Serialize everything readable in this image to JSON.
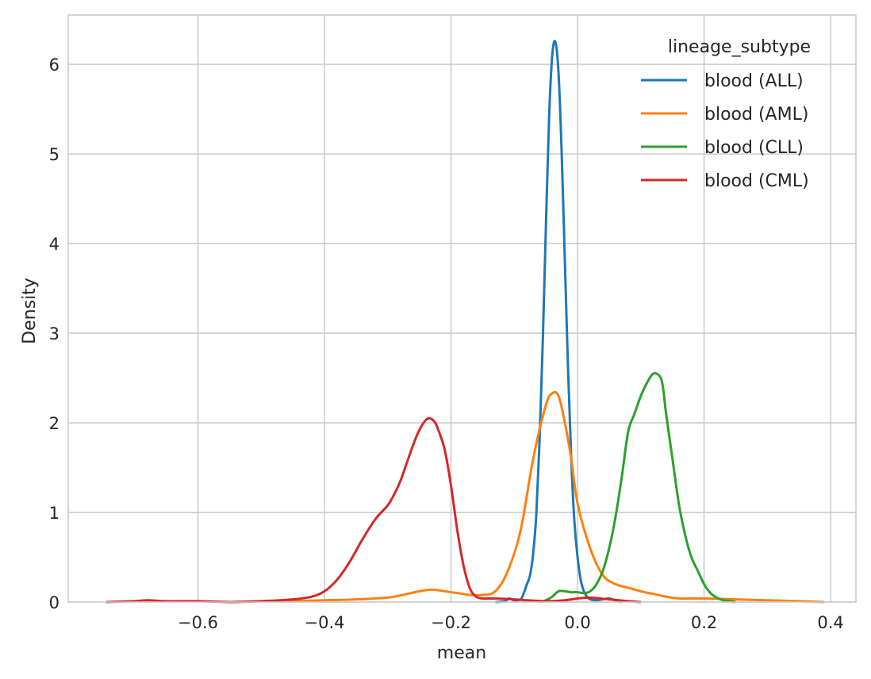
{
  "chart_data": {
    "type": "line",
    "title": "",
    "xlabel": "mean",
    "ylabel": "Density",
    "xlim": [
      -0.805,
      0.44
    ],
    "ylim": [
      0,
      6.55
    ],
    "xticks": [
      -0.6,
      -0.4,
      -0.2,
      0.0,
      0.2,
      0.4
    ],
    "xtick_labels": [
      "−0.6",
      "−0.4",
      "−0.2",
      "0.0",
      "0.2",
      "0.4"
    ],
    "yticks": [
      0,
      1,
      2,
      3,
      4,
      5,
      6
    ],
    "ytick_labels": [
      "0",
      "1",
      "2",
      "3",
      "4",
      "5",
      "6"
    ],
    "grid": true,
    "legend": {
      "title": "lineage_subtype",
      "placement": "top-right"
    },
    "series": [
      {
        "name": "blood (ALL)",
        "color": "#1f77b4",
        "x": [
          -0.13,
          -0.115,
          -0.108,
          -0.1,
          -0.09,
          -0.085,
          -0.08,
          -0.075,
          -0.07,
          -0.065,
          -0.06,
          -0.055,
          -0.05,
          -0.045,
          -0.04,
          -0.035,
          -0.03,
          -0.025,
          -0.02,
          -0.015,
          -0.01,
          -0.005,
          0.0,
          0.005,
          0.01,
          0.015,
          0.02,
          0.03,
          0.04,
          0.05,
          0.06,
          0.07
        ],
        "y": [
          0.0,
          0.01,
          0.04,
          0.02,
          0.03,
          0.1,
          0.2,
          0.3,
          0.55,
          1.0,
          1.8,
          2.9,
          4.2,
          5.4,
          6.1,
          6.25,
          5.9,
          5.0,
          3.8,
          2.6,
          1.6,
          0.9,
          0.5,
          0.25,
          0.12,
          0.06,
          0.03,
          0.02,
          0.03,
          0.04,
          0.02,
          0.0
        ]
      },
      {
        "name": "blood (AML)",
        "color": "#ff7f0e",
        "x": [
          -0.55,
          -0.5,
          -0.45,
          -0.4,
          -0.35,
          -0.3,
          -0.27,
          -0.25,
          -0.23,
          -0.21,
          -0.19,
          -0.17,
          -0.15,
          -0.13,
          -0.11,
          -0.09,
          -0.07,
          -0.05,
          -0.04,
          -0.03,
          -0.02,
          -0.01,
          0.0,
          0.02,
          0.04,
          0.06,
          0.08,
          0.1,
          0.12,
          0.14,
          0.16,
          0.2,
          0.25,
          0.3,
          0.35,
          0.39
        ],
        "y": [
          0.0,
          0.01,
          0.01,
          0.02,
          0.03,
          0.05,
          0.09,
          0.12,
          0.14,
          0.12,
          0.1,
          0.08,
          0.08,
          0.12,
          0.35,
          0.8,
          1.6,
          2.2,
          2.33,
          2.3,
          2.0,
          1.6,
          1.1,
          0.6,
          0.3,
          0.2,
          0.16,
          0.12,
          0.09,
          0.06,
          0.04,
          0.04,
          0.03,
          0.02,
          0.01,
          0.0
        ]
      },
      {
        "name": "blood (CLL)",
        "color": "#2ca02c",
        "x": [
          -0.06,
          -0.05,
          -0.04,
          -0.03,
          -0.02,
          -0.01,
          0.0,
          0.01,
          0.02,
          0.03,
          0.04,
          0.05,
          0.06,
          0.07,
          0.08,
          0.09,
          0.1,
          0.11,
          0.12,
          0.13,
          0.135,
          0.14,
          0.15,
          0.16,
          0.17,
          0.18,
          0.19,
          0.2,
          0.21,
          0.22,
          0.23,
          0.24,
          0.25
        ],
        "y": [
          0.0,
          0.02,
          0.06,
          0.12,
          0.12,
          0.11,
          0.11,
          0.1,
          0.12,
          0.2,
          0.35,
          0.6,
          0.95,
          1.4,
          1.9,
          2.1,
          2.3,
          2.45,
          2.55,
          2.52,
          2.4,
          2.1,
          1.6,
          1.1,
          0.75,
          0.5,
          0.35,
          0.2,
          0.1,
          0.05,
          0.02,
          0.01,
          0.0
        ]
      },
      {
        "name": "blood (CML)",
        "color": "#d62728",
        "x": [
          -0.745,
          -0.7,
          -0.68,
          -0.65,
          -0.6,
          -0.55,
          -0.5,
          -0.45,
          -0.42,
          -0.4,
          -0.38,
          -0.36,
          -0.34,
          -0.32,
          -0.3,
          -0.29,
          -0.28,
          -0.27,
          -0.26,
          -0.25,
          -0.24,
          -0.235,
          -0.23,
          -0.225,
          -0.22,
          -0.21,
          -0.2,
          -0.19,
          -0.18,
          -0.17,
          -0.16,
          -0.15,
          -0.13,
          -0.1,
          -0.08,
          -0.05,
          -0.02,
          0.0,
          0.02,
          0.05,
          0.08,
          0.1
        ],
        "y": [
          0.0,
          0.01,
          0.02,
          0.01,
          0.01,
          0.0,
          0.01,
          0.03,
          0.06,
          0.12,
          0.25,
          0.45,
          0.7,
          0.92,
          1.08,
          1.2,
          1.35,
          1.55,
          1.75,
          1.92,
          2.03,
          2.05,
          2.04,
          2.0,
          1.92,
          1.7,
          1.3,
          0.8,
          0.4,
          0.15,
          0.06,
          0.04,
          0.04,
          0.03,
          0.02,
          0.01,
          0.02,
          0.04,
          0.05,
          0.03,
          0.01,
          0.0
        ]
      }
    ]
  }
}
